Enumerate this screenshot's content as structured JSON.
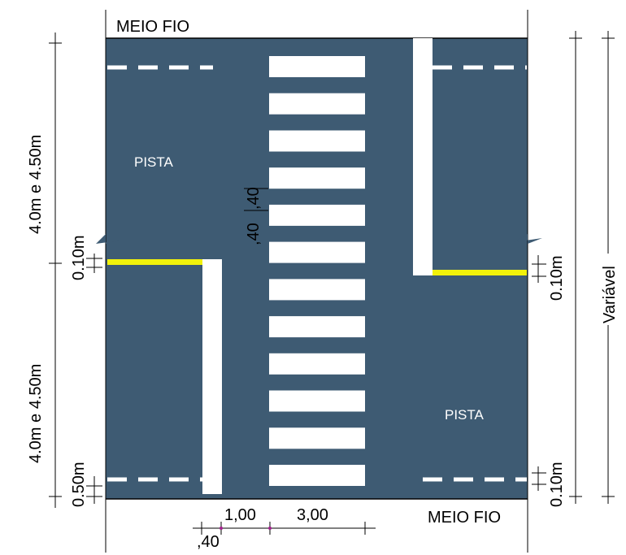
{
  "diagram": {
    "colors": {
      "road": "#3e5b73",
      "marking": "#ffffff",
      "stop_line": "#f2f20a",
      "dimension_line": "#000000",
      "tick_accent": "#a0208c"
    },
    "labels": {
      "curb_top": "MEIO FIO",
      "curb_bottom": "MEIO FIO",
      "lane_top_left": "PISTA",
      "lane_bottom_right": "PISTA",
      "dim_left_upper": "4.0m e 4.50m",
      "dim_left_lower": "4.0m e 4.50m",
      "dim_left_stop": "0.10m",
      "dim_left_bottom": "0.50m",
      "dim_right_stop": "0.10m",
      "dim_right_bottom": "0.10m",
      "dim_right_total": "Variável",
      "dim_stripe_width": ",40",
      "dim_stripe_gap": ",40",
      "dim_bottom_gap": "1,00",
      "dim_bottom_crosswalk": "3,00",
      "dim_bottom_stop_width": ",40"
    },
    "crosswalk": {
      "stripe_count": 12
    }
  }
}
